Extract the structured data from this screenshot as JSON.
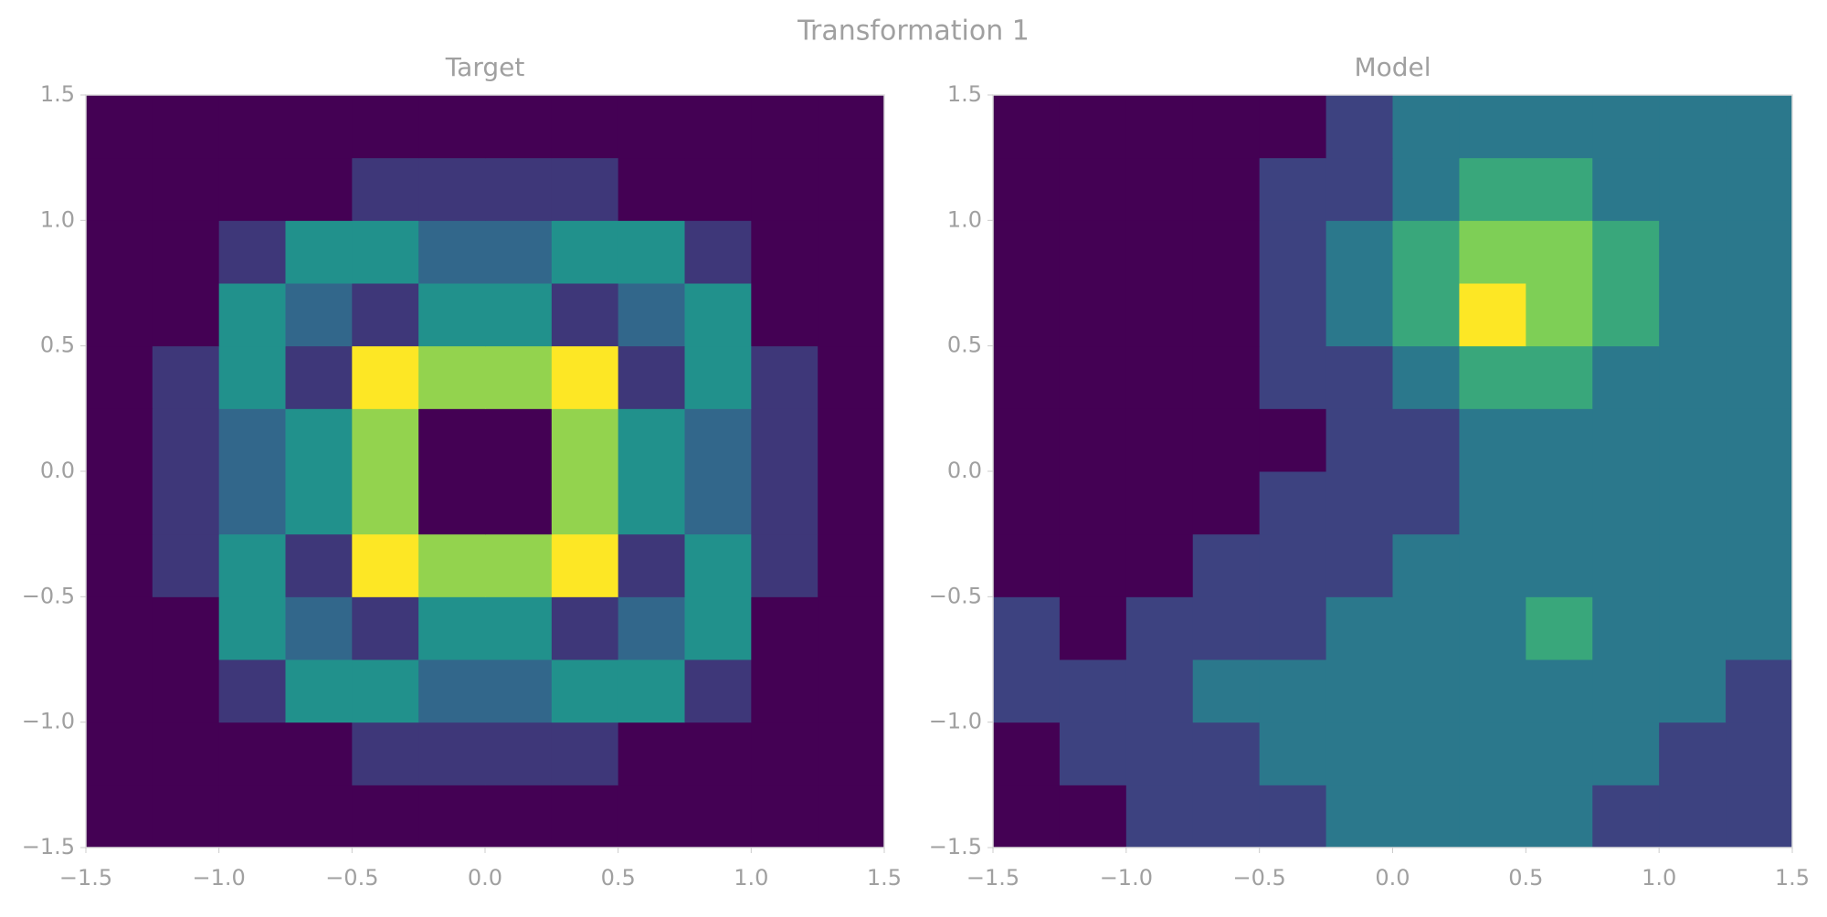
{
  "suptitle": "Transformation 1",
  "chart_data": [
    {
      "type": "heatmap",
      "title": "Target",
      "x_edges": [
        -1.5,
        -1.25,
        -1,
        -0.75,
        -0.5,
        -0.25,
        0,
        0.25,
        0.5,
        0.75,
        1,
        1.25,
        1.5
      ],
      "y_edges": [
        -1.5,
        -1.25,
        -1,
        -0.75,
        -0.5,
        -0.25,
        0,
        0.25,
        0.5,
        0.75,
        1,
        1.25,
        1.5
      ],
      "z": [
        [
          0,
          0,
          0,
          0,
          0,
          0,
          0,
          0,
          0,
          0,
          0,
          0
        ],
        [
          0,
          0,
          0,
          0,
          1,
          1,
          1,
          1,
          0,
          0,
          0,
          0
        ],
        [
          0,
          0,
          1,
          3,
          3,
          2,
          2,
          3,
          3,
          1,
          0,
          0
        ],
        [
          0,
          0,
          3,
          2,
          1,
          3,
          3,
          1,
          2,
          3,
          0,
          0
        ],
        [
          0,
          1,
          3,
          1,
          6,
          5,
          5,
          6,
          1,
          3,
          1,
          0
        ],
        [
          0,
          1,
          2,
          3,
          5,
          0,
          0,
          5,
          3,
          2,
          1,
          0
        ],
        [
          0,
          1,
          2,
          3,
          5,
          0,
          0,
          5,
          3,
          2,
          1,
          0
        ],
        [
          0,
          1,
          3,
          1,
          6,
          5,
          5,
          6,
          1,
          3,
          1,
          0
        ],
        [
          0,
          0,
          3,
          2,
          1,
          3,
          3,
          1,
          2,
          3,
          0,
          0
        ],
        [
          0,
          0,
          1,
          3,
          3,
          2,
          2,
          3,
          3,
          1,
          0,
          0
        ],
        [
          0,
          0,
          0,
          0,
          1,
          1,
          1,
          1,
          0,
          0,
          0,
          0
        ],
        [
          0,
          0,
          0,
          0,
          0,
          0,
          0,
          0,
          0,
          0,
          0,
          0
        ]
      ],
      "xlim": [
        -1.5,
        1.5
      ],
      "ylim": [
        -1.5,
        1.5
      ],
      "xticks": [
        {
          "value": -1.5,
          "label": "−1.5"
        },
        {
          "value": -1,
          "label": "−1.0"
        },
        {
          "value": -0.5,
          "label": "−0.5"
        },
        {
          "value": 0,
          "label": "0.0"
        },
        0.5,
        {
          "value": 1,
          "label": "1.0"
        },
        {
          "value": 1.5,
          "label": "1.5"
        }
      ],
      "yticks": [
        {
          "value": -1.5,
          "label": "−1.5"
        },
        {
          "value": -1,
          "label": "−1.0"
        },
        {
          "value": -0.5,
          "label": "−0.5"
        },
        {
          "value": 0,
          "label": "0.0"
        },
        0.5,
        {
          "value": 1,
          "label": "1.0"
        },
        {
          "value": 1.5,
          "label": "1.5"
        }
      ]
    },
    {
      "type": "heatmap",
      "title": "Model",
      "x_edges": [
        -1.5,
        -1.25,
        -1,
        -0.75,
        -0.5,
        -0.25,
        0,
        0.25,
        0.5,
        0.75,
        1,
        1.25,
        1.5
      ],
      "y_edges": [
        -1.5,
        -1.25,
        -1,
        -0.75,
        -0.5,
        -0.25,
        0,
        0.25,
        0.5,
        0.75,
        1,
        1.25,
        1.5
      ],
      "z": [
        [
          0,
          0,
          1,
          1,
          1,
          2,
          2,
          2,
          2,
          1,
          1,
          1
        ],
        [
          0,
          1,
          1,
          1,
          2,
          2,
          2,
          2,
          2,
          2,
          1,
          1
        ],
        [
          1,
          1,
          1,
          2,
          2,
          2,
          2,
          2,
          2,
          2,
          2,
          1
        ],
        [
          1,
          0,
          1,
          1,
          1,
          2,
          2,
          2,
          3,
          2,
          2,
          2
        ],
        [
          0,
          0,
          0,
          1,
          1,
          1,
          2,
          2,
          2,
          2,
          2,
          2
        ],
        [
          0,
          0,
          0,
          0,
          1,
          1,
          1,
          2,
          2,
          2,
          2,
          2
        ],
        [
          0,
          0,
          0,
          0,
          0,
          1,
          1,
          2,
          2,
          2,
          2,
          2
        ],
        [
          0,
          0,
          0,
          0,
          1,
          1,
          2,
          3,
          3,
          2,
          2,
          2
        ],
        [
          0,
          0,
          0,
          0,
          1,
          2,
          3,
          5,
          4,
          3,
          2,
          2
        ],
        [
          0,
          0,
          0,
          0,
          1,
          2,
          3,
          4,
          4,
          3,
          2,
          2
        ],
        [
          0,
          0,
          0,
          0,
          1,
          1,
          2,
          3,
          3,
          2,
          2,
          2
        ],
        [
          0,
          0,
          0,
          0,
          0,
          1,
          2,
          2,
          2,
          2,
          2,
          2
        ]
      ],
      "xlim": [
        -1.5,
        1.5
      ],
      "ylim": [
        -1.5,
        1.5
      ],
      "xticks": [
        {
          "value": -1.5,
          "label": "−1.5"
        },
        {
          "value": -1,
          "label": "−1.0"
        },
        {
          "value": -0.5,
          "label": "−0.5"
        },
        {
          "value": 0,
          "label": "0.0"
        },
        0.5,
        {
          "value": 1,
          "label": "1.0"
        },
        {
          "value": 1.5,
          "label": "1.5"
        }
      ],
      "yticks": [
        {
          "value": -1.5,
          "label": "−1.5"
        },
        {
          "value": -1,
          "label": "−1.0"
        },
        {
          "value": -0.5,
          "label": "−0.5"
        },
        {
          "value": 0,
          "label": "0.0"
        },
        0.5,
        {
          "value": 1,
          "label": "1.0"
        },
        {
          "value": 1.5,
          "label": "1.5"
        }
      ]
    }
  ]
}
